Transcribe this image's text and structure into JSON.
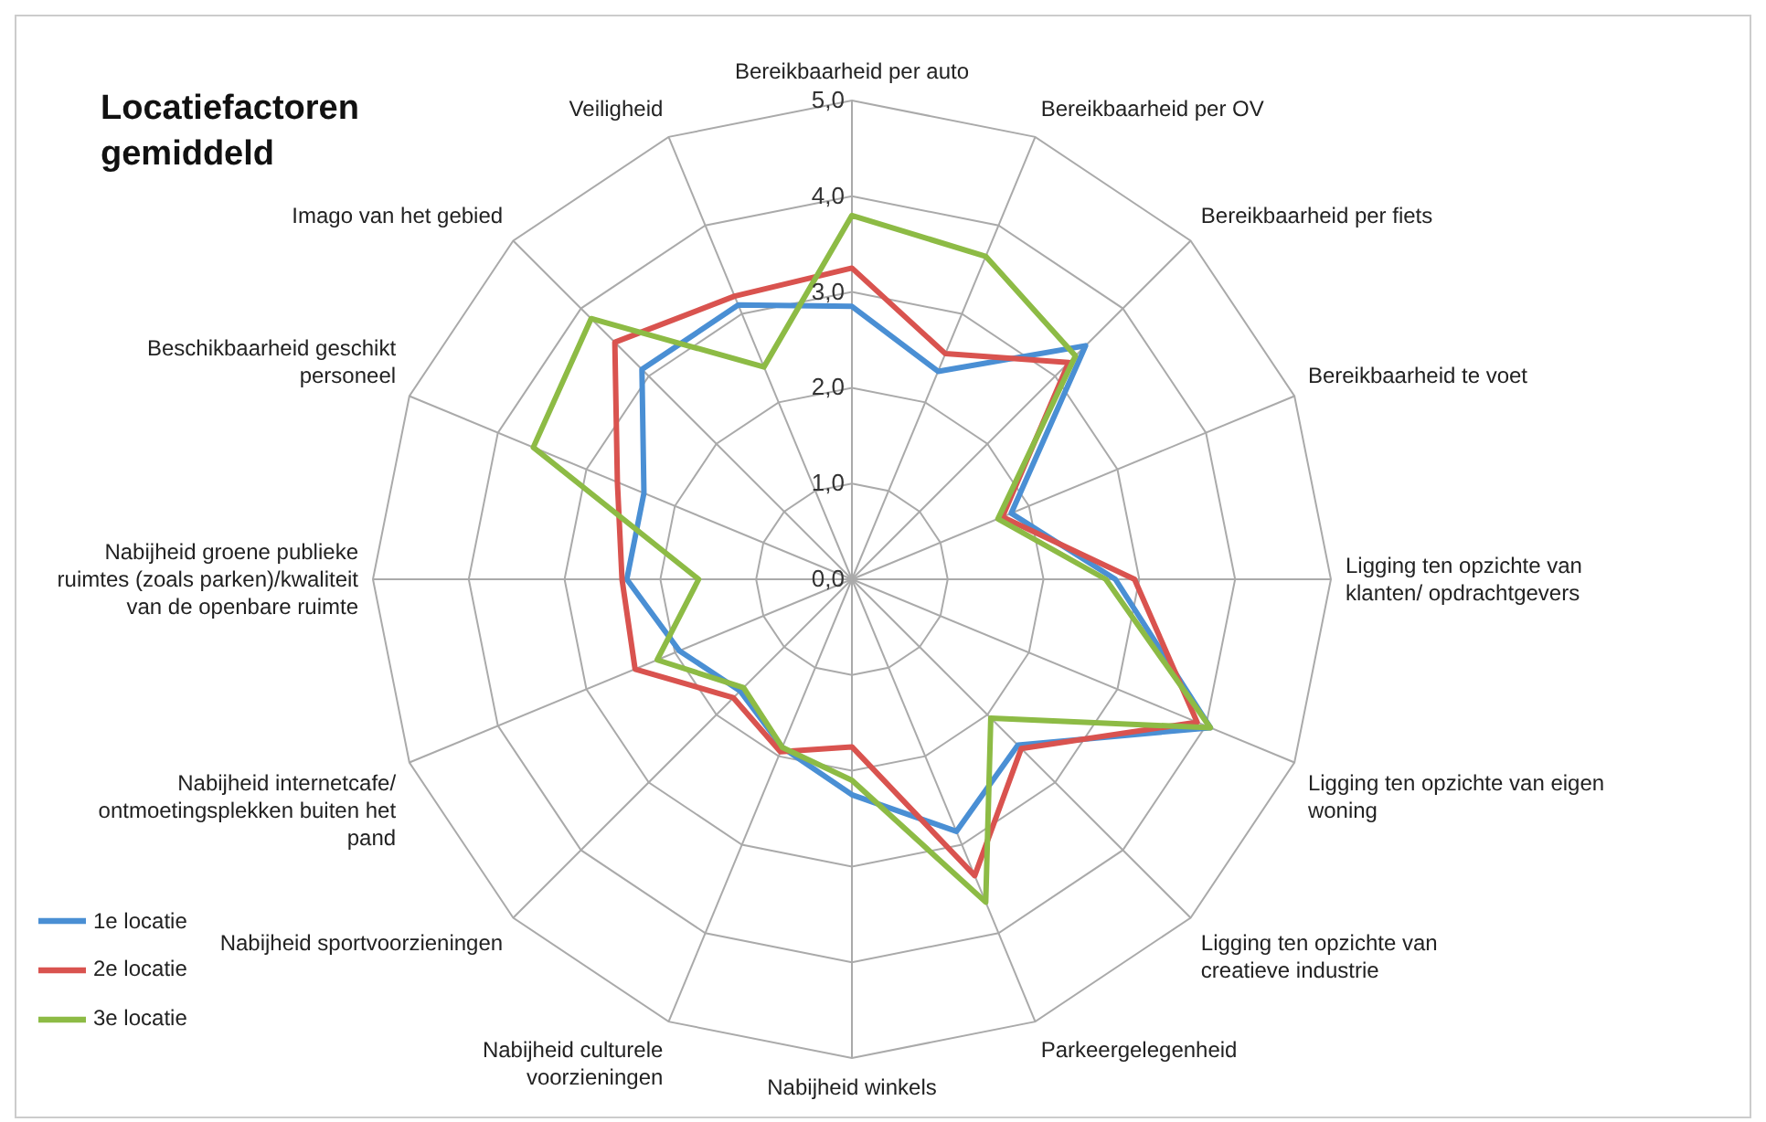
{
  "chart_data": {
    "type": "radar",
    "title": "Locatiefactoren gemiddeld",
    "categories": [
      "Bereikbaarheid per auto",
      "Bereikbaarheid per OV",
      "Bereikbaarheid per fiets",
      "Bereikbaarheid te voet",
      "Ligging ten opzichte van klanten/ opdrachtgevers",
      "Ligging ten opzichte van eigen woning",
      "Ligging ten opzichte van creatieve industrie",
      "Parkeergelegenheid",
      "Nabijheid winkels",
      "Nabijheid culturele voorzieningen",
      "Nabijheid sportvoorzieningen",
      "Nabijheid internetcafe/ ontmoetingsplekken buiten het pand",
      "Nabijheid groene publieke ruimtes (zoals parken)/kwaliteit van de openbare ruimte",
      "Beschikbaarheid geschikt personeel",
      "Imago van het gebied",
      "Veiligheid"
    ],
    "series": [
      {
        "name": "1e locatie",
        "color": "#4a8fd4",
        "values": [
          2.85,
          2.35,
          3.45,
          1.8,
          2.75,
          4.05,
          2.45,
          2.85,
          2.25,
          1.9,
          1.65,
          1.95,
          2.35,
          2.35,
          3.1,
          3.1
        ]
      },
      {
        "name": "2e locatie",
        "color": "#d9534f",
        "values": [
          3.25,
          2.55,
          3.2,
          1.7,
          2.95,
          3.9,
          2.5,
          3.35,
          1.75,
          1.95,
          1.75,
          2.45,
          2.4,
          2.65,
          3.5,
          3.2
        ]
      },
      {
        "name": "3e locatie",
        "color": "#8dbb45",
        "values": [
          3.8,
          3.65,
          3.3,
          1.65,
          2.65,
          4.05,
          2.05,
          3.65,
          2.1,
          1.9,
          1.6,
          2.2,
          1.6,
          3.6,
          3.85,
          2.4
        ]
      }
    ],
    "ylim": [
      0,
      5
    ],
    "yticks": [
      {
        "value": 0,
        "label": "0,0"
      },
      {
        "value": 1,
        "label": "1,0"
      },
      {
        "value": 2,
        "label": "2,0"
      },
      {
        "value": 3,
        "label": "3,0"
      },
      {
        "value": 4,
        "label": "4,0"
      },
      {
        "value": 5,
        "label": "5,0"
      }
    ],
    "grid": true,
    "legend": "bottom left",
    "marker": "none",
    "line_style": "solid"
  }
}
